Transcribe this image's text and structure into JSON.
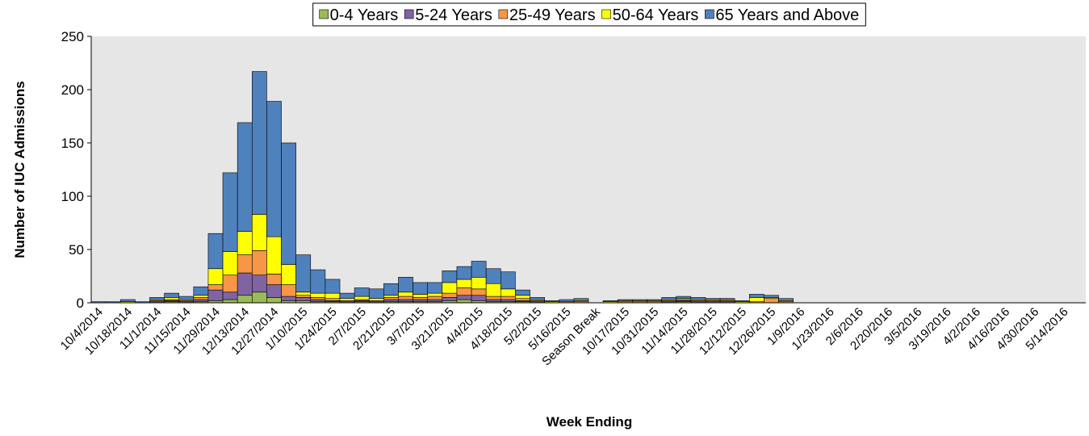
{
  "chart_data": {
    "type": "stacked_bar",
    "x_label": "Week Ending",
    "y_label": "Number of IUC Admissions",
    "categories": [
      "10/4/2014",
      null,
      "10/18/2014",
      null,
      "11/1/2014",
      null,
      "11/15/2014",
      null,
      "11/29/2014",
      null,
      "12/13/2014",
      null,
      "12/27/2014",
      null,
      "1/10/2015",
      null,
      "1/24/2015",
      null,
      "2/7/2015",
      null,
      "2/21/2015",
      null,
      "3/7/2015",
      null,
      "3/21/2015",
      null,
      "4/4/2015",
      null,
      "4/18/2015",
      null,
      "5/2/2015",
      null,
      "5/16/2015",
      null,
      "Season Break",
      null,
      "10/17/2015",
      null,
      "10/31/2015",
      null,
      "11/14/2015",
      null,
      "11/28/2015",
      null,
      "12/12/2015",
      null,
      "12/26/2015",
      null,
      "1/9/2016",
      null,
      "1/23/2016",
      null,
      "2/6/2016",
      null,
      "2/20/2016",
      null,
      "3/5/2016",
      null,
      "3/19/2016",
      null,
      "4/2/2016",
      null,
      "4/16/2016",
      null,
      "4/30/2016",
      null,
      "5/14/2016",
      null
    ],
    "series": [
      {
        "name": "0-4 Years",
        "color": "#9bbb59",
        "values": [
          0,
          0,
          0,
          0,
          0,
          1,
          0,
          1,
          2,
          3,
          7,
          10,
          5,
          2,
          2,
          1,
          1,
          0,
          1,
          0,
          1,
          1,
          1,
          1,
          2,
          3,
          2,
          1,
          1,
          1,
          0,
          0,
          0,
          0,
          0,
          0,
          0,
          0,
          0,
          0,
          1,
          0,
          0,
          0,
          0,
          0,
          0,
          0,
          0,
          0,
          0,
          0,
          0,
          0,
          0,
          0,
          0,
          0,
          0,
          0,
          0,
          0,
          0,
          0,
          0,
          0,
          0,
          0
        ]
      },
      {
        "name": "5-24 Years",
        "color": "#8064a2",
        "values": [
          0,
          0,
          0,
          0,
          1,
          1,
          1,
          2,
          10,
          7,
          21,
          16,
          12,
          4,
          3,
          2,
          1,
          1,
          1,
          1,
          2,
          2,
          2,
          2,
          3,
          4,
          5,
          2,
          2,
          1,
          1,
          0,
          0,
          0,
          0,
          0,
          0,
          0,
          0,
          1,
          1,
          1,
          1,
          1,
          0,
          0,
          0,
          0,
          0,
          0,
          0,
          0,
          0,
          0,
          0,
          0,
          0,
          0,
          0,
          0,
          0,
          0,
          0,
          0,
          0,
          0,
          0,
          0
        ]
      },
      {
        "name": "25-49 Years",
        "color": "#f79646",
        "values": [
          0,
          0,
          0,
          0,
          1,
          1,
          1,
          2,
          5,
          16,
          17,
          23,
          10,
          11,
          2,
          2,
          2,
          1,
          1,
          1,
          2,
          3,
          2,
          3,
          4,
          7,
          6,
          3,
          3,
          2,
          1,
          0,
          1,
          1,
          0,
          0,
          1,
          1,
          1,
          1,
          1,
          1,
          1,
          1,
          0,
          1,
          4,
          1,
          0,
          0,
          0,
          0,
          0,
          0,
          0,
          0,
          0,
          0,
          0,
          0,
          0,
          0,
          0,
          0,
          0,
          0,
          0,
          0
        ]
      },
      {
        "name": "50-64 Years",
        "color": "#ffff00",
        "values": [
          0,
          0,
          1,
          0,
          1,
          2,
          1,
          2,
          15,
          22,
          22,
          34,
          35,
          19,
          3,
          4,
          5,
          2,
          3,
          2,
          2,
          4,
          3,
          3,
          10,
          8,
          11,
          12,
          7,
          3,
          1,
          1,
          0,
          1,
          0,
          1,
          1,
          1,
          1,
          1,
          1,
          1,
          1,
          1,
          1,
          4,
          1,
          1,
          0,
          0,
          0,
          0,
          0,
          0,
          0,
          0,
          0,
          0,
          0,
          0,
          0,
          0,
          0,
          0,
          0,
          0,
          0,
          0
        ]
      },
      {
        "name": "65 Years and Above",
        "color": "#4f81bd",
        "values": [
          1,
          1,
          2,
          1,
          2,
          4,
          3,
          8,
          33,
          74,
          102,
          134,
          127,
          114,
          35,
          22,
          13,
          5,
          8,
          9,
          11,
          14,
          11,
          10,
          11,
          12,
          15,
          14,
          16,
          5,
          2,
          1,
          2,
          2,
          0,
          1,
          1,
          1,
          1,
          2,
          2,
          2,
          1,
          1,
          1,
          3,
          2,
          2,
          0,
          0,
          0,
          0,
          0,
          0,
          0,
          0,
          0,
          0,
          0,
          0,
          0,
          0,
          0,
          0,
          0,
          0,
          0,
          0
        ]
      }
    ],
    "ylim": [
      0,
      250
    ],
    "yticks": [
      0,
      50,
      100,
      150,
      200,
      250
    ],
    "plot_background": "#e6e6e6",
    "legend": "top"
  }
}
